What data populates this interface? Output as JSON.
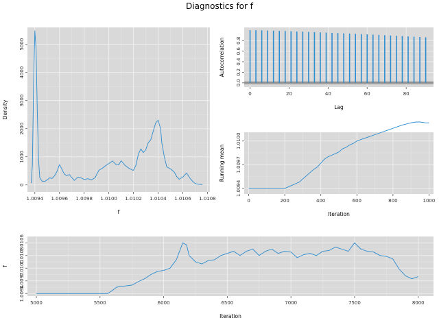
{
  "title": "Diagnostics for f",
  "colors": {
    "panel_bg": "#d9d9d9",
    "grid_major": "#eeeeee",
    "grid_minor": "#e4e4e4",
    "line": "#2b8cd0"
  },
  "chart_data": [
    {
      "id": "density",
      "type": "line",
      "xlabel": "f",
      "ylabel": "Density",
      "xlim": [
        1.00934,
        1.01082
      ],
      "ylim": [
        -250,
        5600
      ],
      "xticks": [
        "1.0094",
        "1.0096",
        "1.0098",
        "1.0100",
        "1.0102",
        "1.0104",
        "1.0106",
        "1.0108"
      ],
      "xtick_values": [
        1.0094,
        1.0096,
        1.0098,
        1.01,
        1.0102,
        1.0104,
        1.0106,
        1.0108
      ],
      "yticks": [
        "0",
        "1000",
        "2000",
        "3000",
        "4000",
        "5000"
      ],
      "ytick_values": [
        0,
        1000,
        2000,
        3000,
        4000,
        5000
      ],
      "x": [
        1.00937,
        1.00938,
        1.00939,
        1.0094,
        1.00941,
        1.00942,
        1.00943,
        1.00944,
        1.00946,
        1.00948,
        1.0095,
        1.00952,
        1.00954,
        1.00956,
        1.00958,
        1.0096,
        1.00962,
        1.00964,
        1.00966,
        1.00968,
        1.0097,
        1.00972,
        1.00975,
        1.00978,
        1.0098,
        1.00983,
        1.00986,
        1.00989,
        1.0099,
        1.00992,
        1.00995,
        1.00998,
        1.01,
        1.01003,
        1.01006,
        1.01008,
        1.0101,
        1.01013,
        1.01016,
        1.01019,
        1.0102,
        1.01022,
        1.01024,
        1.01026,
        1.01028,
        1.0103,
        1.01032,
        1.01034,
        1.01036,
        1.01038,
        1.0104,
        1.01042,
        1.01043,
        1.01045,
        1.01047,
        1.0105,
        1.01053,
        1.01055,
        1.01057,
        1.0106,
        1.01063,
        1.01066,
        1.01068,
        1.0107,
        1.01073,
        1.01076
      ],
      "y": [
        60,
        700,
        3600,
        5480,
        4800,
        2600,
        900,
        250,
        130,
        120,
        180,
        250,
        230,
        320,
        480,
        720,
        560,
        380,
        330,
        370,
        260,
        160,
        280,
        240,
        190,
        220,
        180,
        260,
        360,
        520,
        600,
        700,
        760,
        850,
        720,
        710,
        860,
        700,
        600,
        530,
        520,
        700,
        1100,
        1280,
        1150,
        1250,
        1500,
        1600,
        1900,
        2200,
        2300,
        2000,
        1500,
        1000,
        640,
        570,
        460,
        300,
        200,
        280,
        420,
        230,
        130,
        50,
        20,
        10
      ]
    },
    {
      "id": "autocorrelation",
      "type": "bar",
      "xlabel": "Lag",
      "ylabel": "Autocorrelation",
      "xlim": [
        -3,
        94
      ],
      "ylim": [
        -0.08,
        1.05
      ],
      "xticks": [
        "0",
        "20",
        "40",
        "60",
        "80"
      ],
      "xtick_values": [
        0,
        20,
        40,
        60,
        80
      ],
      "yticks": [
        "0.0",
        "0.2",
        "0.4",
        "0.6",
        "0.8"
      ],
      "ytick_values": [
        0,
        0.2,
        0.4,
        0.6,
        0.8
      ],
      "band": [
        -0.03,
        0.03
      ],
      "lags": [
        0,
        3,
        6,
        9,
        12,
        15,
        18,
        21,
        24,
        27,
        30,
        33,
        36,
        39,
        42,
        45,
        48,
        51,
        54,
        57,
        60,
        63,
        66,
        69,
        72,
        75,
        78,
        81,
        84,
        87,
        90
      ],
      "values": [
        1.0,
        0.997,
        0.994,
        0.991,
        0.987,
        0.984,
        0.981,
        0.977,
        0.973,
        0.969,
        0.965,
        0.961,
        0.956,
        0.952,
        0.947,
        0.943,
        0.938,
        0.933,
        0.928,
        0.923,
        0.918,
        0.913,
        0.908,
        0.902,
        0.897,
        0.891,
        0.886,
        0.88,
        0.874,
        0.868,
        0.862
      ]
    },
    {
      "id": "running-mean",
      "type": "line",
      "xlabel": "Iteration",
      "ylabel": "Running mean",
      "xlim": [
        -25,
        1025
      ],
      "ylim": [
        1.00933,
        1.01011
      ],
      "xticks": [
        "0",
        "200",
        "400",
        "600",
        "800",
        "1000"
      ],
      "xtick_values": [
        0,
        200,
        400,
        600,
        800,
        1000
      ],
      "yticks": [
        "1.0094",
        "1.0097",
        "1.0100"
      ],
      "ytick_values": [
        1.0094,
        1.0097,
        1.01
      ],
      "x": [
        0,
        50,
        100,
        150,
        200,
        220,
        240,
        260,
        280,
        300,
        320,
        340,
        360,
        380,
        400,
        420,
        440,
        460,
        480,
        500,
        520,
        540,
        560,
        580,
        600,
        650,
        700,
        750,
        800,
        850,
        900,
        930,
        950,
        980,
        1000
      ],
      "y": [
        1.0094,
        1.0094,
        1.0094,
        1.0094,
        1.0094,
        1.00942,
        1.00944,
        1.00946,
        1.00948,
        1.00952,
        1.00956,
        1.0096,
        1.00964,
        1.00967,
        1.00972,
        1.00977,
        1.0098,
        1.00982,
        1.00984,
        1.00986,
        1.0099,
        1.00992,
        1.00995,
        1.00997,
        1.01,
        1.01004,
        1.01008,
        1.01012,
        1.01016,
        1.0102,
        1.01023,
        1.01024,
        1.01024,
        1.01023,
        1.01023
      ]
    },
    {
      "id": "trace",
      "type": "line",
      "xlabel": "Iteration",
      "ylabel": "f",
      "xlim": [
        4930,
        8120
      ],
      "ylim": [
        1.00934,
        1.01075
      ],
      "xticks": [
        "5000",
        "5500",
        "6000",
        "6500",
        "7000",
        "7500",
        "8000"
      ],
      "xtick_values": [
        5000,
        5500,
        6000,
        6500,
        7000,
        7500,
        8000
      ],
      "yticks": [
        "1.0094",
        "1.0097",
        "1.0100",
        "1.0103",
        "1.0106"
      ],
      "ytick_values": [
        1.0094,
        1.0097,
        1.01,
        1.0103,
        1.0106
      ],
      "x": [
        5000,
        5560,
        5600,
        5630,
        5700,
        5750,
        5800,
        5850,
        5900,
        5950,
        6000,
        6050,
        6100,
        6150,
        6180,
        6200,
        6250,
        6300,
        6350,
        6400,
        6450,
        6500,
        6550,
        6600,
        6650,
        6700,
        6750,
        6800,
        6850,
        6900,
        6950,
        7000,
        7050,
        7100,
        7150,
        7200,
        7250,
        7300,
        7350,
        7400,
        7450,
        7500,
        7550,
        7600,
        7650,
        7700,
        7750,
        7800,
        7850,
        7900,
        7950,
        8000
      ],
      "y": [
        1.0094,
        1.0094,
        1.00948,
        1.00955,
        1.00958,
        1.0096,
        1.00968,
        1.00975,
        1.00985,
        1.00992,
        1.00995,
        1.01,
        1.0102,
        1.0106,
        1.01055,
        1.0103,
        1.01015,
        1.0101,
        1.01018,
        1.0102,
        1.0103,
        1.01035,
        1.0104,
        1.0103,
        1.0104,
        1.01045,
        1.0103,
        1.0104,
        1.01045,
        1.01035,
        1.0104,
        1.01038,
        1.01025,
        1.01032,
        1.01035,
        1.0103,
        1.0104,
        1.01042,
        1.0105,
        1.01045,
        1.0104,
        1.0106,
        1.01045,
        1.0104,
        1.01038,
        1.0103,
        1.01028,
        1.01022,
        1.00998,
        1.00982,
        1.00975,
        1.0098
      ]
    }
  ]
}
